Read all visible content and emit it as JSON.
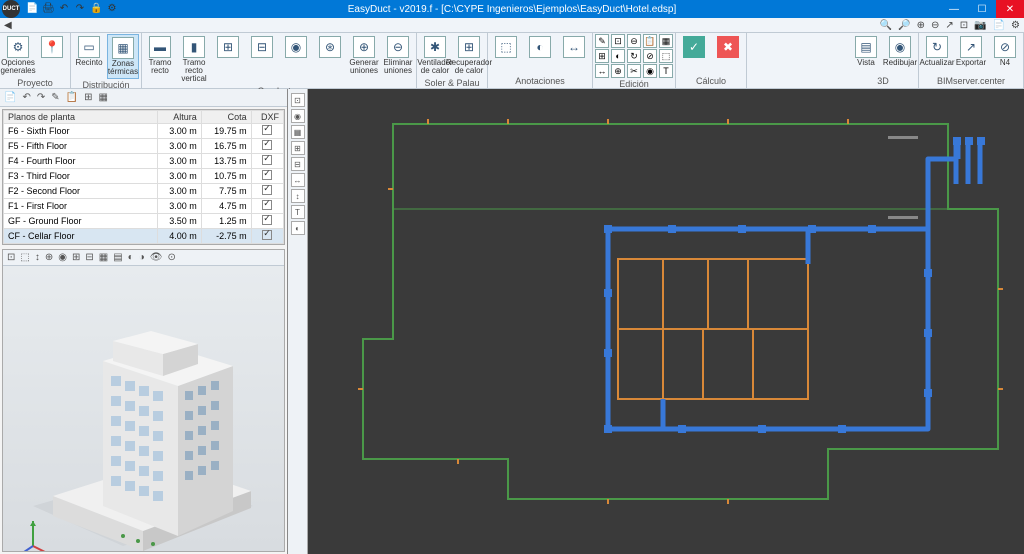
{
  "title": "EasyDuct - v2019.f - [C:\\CYPE Ingenieros\\Ejemplos\\EasyDuct\\Hotel.edsp]",
  "logo": "DUCT",
  "qat": [
    "📄",
    "🖨",
    "↶",
    "↷",
    "🔒",
    "⚙"
  ],
  "tr2_left": "◀",
  "tr2_right": [
    "🔍",
    "🔎",
    "⊕",
    "⊖",
    "↗",
    "⊡",
    "📷",
    "📄",
    "⚙"
  ],
  "winbtns": {
    "min": "—",
    "max": "☐",
    "close": "✕"
  },
  "ribbon": {
    "proyecto": {
      "label": "Proyecto",
      "items": [
        {
          "ico": "⚙",
          "txt": "Opciones\ngenerales"
        },
        {
          "ico": "📍",
          "txt": ""
        }
      ]
    },
    "distribucion": {
      "label": "Distribución",
      "items": [
        {
          "ico": "▭",
          "txt": "Recinto"
        },
        {
          "ico": "▦",
          "txt": "Zonas\ntérmicas",
          "sel": true
        }
      ]
    },
    "conductos": {
      "label": "Conductos",
      "items": [
        {
          "ico": "▬",
          "txt": "Tramo\nrecto"
        },
        {
          "ico": "▮",
          "txt": "Tramo recto\nvertical"
        },
        {
          "ico": "⊞",
          "txt": ""
        },
        {
          "ico": "⊟",
          "txt": ""
        },
        {
          "ico": "◉",
          "txt": ""
        },
        {
          "ico": "⊛",
          "txt": ""
        },
        {
          "ico": "⊕",
          "txt": "Generar\nuniones"
        },
        {
          "ico": "⊖",
          "txt": "Eliminar\nuniones"
        }
      ]
    },
    "sp": {
      "label": "Soler & Palau",
      "items": [
        {
          "ico": "✱",
          "txt": "Ventilador\nde calor"
        },
        {
          "ico": "⊞",
          "txt": "Recuperador\nde calor"
        }
      ]
    },
    "anot": {
      "label": "Anotaciones",
      "items": [
        {
          "ico": "⬚",
          "txt": ""
        },
        {
          "ico": "◐",
          "txt": ""
        },
        {
          "ico": "↔",
          "txt": ""
        }
      ]
    },
    "edicion": {
      "label": "Edición"
    },
    "calculo": {
      "label": "Cálculo",
      "items": [
        {
          "ico": "✓",
          "txt": "",
          "bg": "#4a9"
        },
        {
          "ico": "✖",
          "txt": "",
          "bg": "#e55"
        }
      ]
    },
    "d3": {
      "label": "3D",
      "items": [
        {
          "ico": "▤",
          "txt": "Vista"
        },
        {
          "ico": "◉",
          "txt": "Redibujar"
        }
      ]
    },
    "bim": {
      "label": "BIMserver.center",
      "items": [
        {
          "ico": "↻",
          "txt": "Actualizar"
        },
        {
          "ico": "↗",
          "txt": "Exportar"
        },
        {
          "ico": "⊘",
          "txt": "N4"
        }
      ]
    }
  },
  "left_tb": [
    "📄",
    "↶",
    "↷",
    "✎",
    "📋",
    "⊞",
    "▦"
  ],
  "table": {
    "head": [
      "Planos de planta",
      "Altura",
      "Cota",
      "DXF"
    ],
    "rows": [
      {
        "n": "F6 - Sixth Floor",
        "a": "3.00 m",
        "c": "19.75 m",
        "d": true
      },
      {
        "n": "F5 - Fifth Floor",
        "a": "3.00 m",
        "c": "16.75 m",
        "d": true
      },
      {
        "n": "F4 - Fourth Floor",
        "a": "3.00 m",
        "c": "13.75 m",
        "d": true
      },
      {
        "n": "F3 - Third Floor",
        "a": "3.00 m",
        "c": "10.75 m",
        "d": true
      },
      {
        "n": "F2 - Second Floor",
        "a": "3.00 m",
        "c": "7.75 m",
        "d": true
      },
      {
        "n": "F1 - First Floor",
        "a": "3.00 m",
        "c": "4.75 m",
        "d": true
      },
      {
        "n": "GF - Ground Floor",
        "a": "3.50 m",
        "c": "1.25 m",
        "d": true
      },
      {
        "n": "CF - Cellar Floor",
        "a": "4.00 m",
        "c": "-2.75 m",
        "d": true,
        "sel": true
      }
    ]
  },
  "v3_tb": [
    "⊡",
    "⬚",
    "↕",
    "⊕",
    "◉",
    "⊞",
    "⊟",
    "▦",
    "▤",
    "◐",
    "◑",
    "👁",
    "⊙"
  ],
  "vtb": [
    "⊡",
    "◉",
    "▦",
    "⊞",
    "⊟",
    "↔",
    "↕",
    "T",
    "◐"
  ],
  "colors": {
    "titlebar": "#0178d7",
    "close": "#e81123",
    "ribbon": "#f0f4f9",
    "border": "#c0cad4",
    "plan_bg": "#3a3a3a",
    "duct_blue": "#3878d8",
    "wall_orange": "#d88838",
    "wall_green": "#4a9848",
    "building": "#e8e8e8",
    "building_shadow": "#c8c8c8",
    "axis_r": "#d04040",
    "axis_g": "#40a040",
    "axis_b": "#4060d0"
  }
}
